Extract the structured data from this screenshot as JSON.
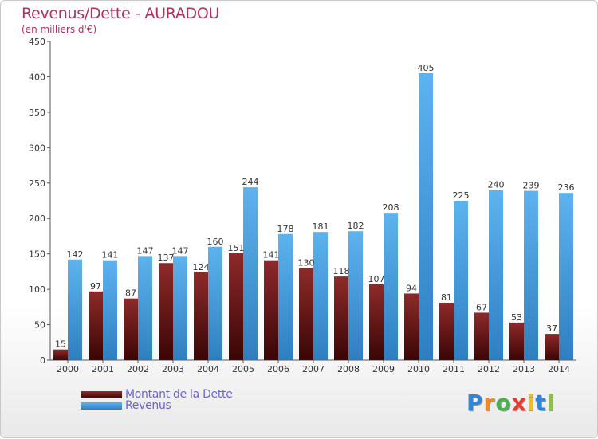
{
  "header": {
    "title": "Revenus/Dette - AURADOU",
    "subtitle": "(en milliers d'€)"
  },
  "legend": {
    "dette_label": "Montant de la Dette",
    "revenus_label": "Revenus"
  },
  "logo": {
    "letters": [
      "P",
      "r",
      "o",
      "x",
      "i",
      "t",
      "i"
    ],
    "colors": [
      "#2e86d6",
      "#f08a24",
      "#4caf50",
      "#e53935",
      "#f0c020",
      "#2e86d6",
      "#8bc34a"
    ]
  },
  "colors": {
    "dette": "#7a1a1a",
    "revenus": "#4aa3e6"
  },
  "chart_data": {
    "type": "bar",
    "categories": [
      "2000",
      "2001",
      "2002",
      "2003",
      "2004",
      "2005",
      "2006",
      "2007",
      "2008",
      "2009",
      "2010",
      "2011",
      "2012",
      "2013",
      "2014"
    ],
    "series": [
      {
        "name": "Montant de la Dette",
        "values": [
          15,
          97,
          87,
          137,
          124,
          151,
          141,
          130,
          118,
          107,
          94,
          81,
          67,
          53,
          37
        ]
      },
      {
        "name": "Revenus",
        "values": [
          142,
          141,
          147,
          147,
          160,
          244,
          178,
          181,
          182,
          208,
          405,
          225,
          240,
          239,
          236
        ]
      }
    ],
    "ylim": [
      0,
      450
    ],
    "yticks": [
      0,
      50,
      100,
      150,
      200,
      250,
      300,
      350,
      400,
      450
    ],
    "grid": false,
    "legend_position": "bottom-left"
  }
}
